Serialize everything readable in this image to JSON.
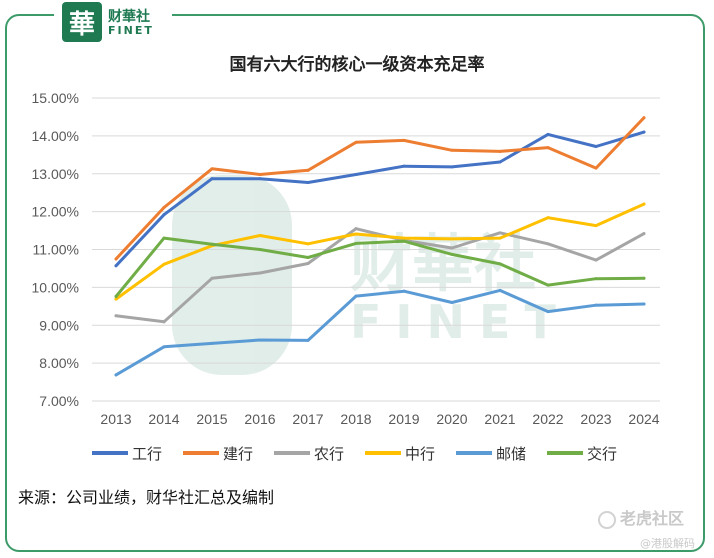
{
  "brand": {
    "mark": "華",
    "name_cn": "财華社",
    "name_en": "FINET"
  },
  "watermark": {
    "cn": "财華社",
    "en": "FINET",
    "corner": "老虎社区",
    "corner_sub": "@港股解码"
  },
  "source_note": "来源：公司业绩，财华社汇总及编制",
  "chart_data": {
    "type": "line",
    "title": "国有六大行的核心一级资本充足率",
    "xlabel": "",
    "ylabel": "",
    "categories": [
      "2013",
      "2014",
      "2015",
      "2016",
      "2017",
      "2018",
      "2019",
      "2020",
      "2021",
      "2022",
      "2023",
      "2024"
    ],
    "ylim": [
      7.0,
      15.0
    ],
    "yticks": [
      "7.00%",
      "8.00%",
      "9.00%",
      "10.00%",
      "11.00%",
      "12.00%",
      "13.00%",
      "14.00%",
      "15.00%"
    ],
    "grid": true,
    "legend_position": "bottom",
    "series": [
      {
        "name": "工行",
        "color": "#4472c4",
        "values": [
          10.57,
          11.92,
          12.87,
          12.87,
          12.77,
          12.98,
          13.2,
          13.18,
          13.31,
          14.04,
          13.72,
          14.1
        ]
      },
      {
        "name": "建行",
        "color": "#ed7d31",
        "values": [
          10.75,
          12.11,
          13.13,
          12.98,
          13.09,
          13.83,
          13.88,
          13.62,
          13.59,
          13.69,
          13.15,
          14.48
        ]
      },
      {
        "name": "农行",
        "color": "#a5a5a5",
        "values": [
          9.25,
          9.09,
          10.24,
          10.38,
          10.63,
          11.55,
          11.24,
          11.04,
          11.44,
          11.15,
          10.72,
          11.42
        ]
      },
      {
        "name": "中行",
        "color": "#ffc000",
        "values": [
          9.69,
          10.61,
          11.1,
          11.37,
          11.15,
          11.41,
          11.3,
          11.28,
          11.3,
          11.84,
          11.63,
          12.2
        ]
      },
      {
        "name": "邮储",
        "color": "#5b9bd5",
        "values": [
          7.69,
          8.43,
          8.52,
          8.61,
          8.6,
          9.77,
          9.9,
          9.6,
          9.92,
          9.36,
          9.53,
          9.56
        ]
      },
      {
        "name": "交行",
        "color": "#70ad47",
        "values": [
          9.76,
          11.3,
          11.14,
          11.0,
          10.79,
          11.16,
          11.22,
          10.87,
          10.62,
          10.06,
          10.23,
          10.24
        ]
      }
    ]
  }
}
